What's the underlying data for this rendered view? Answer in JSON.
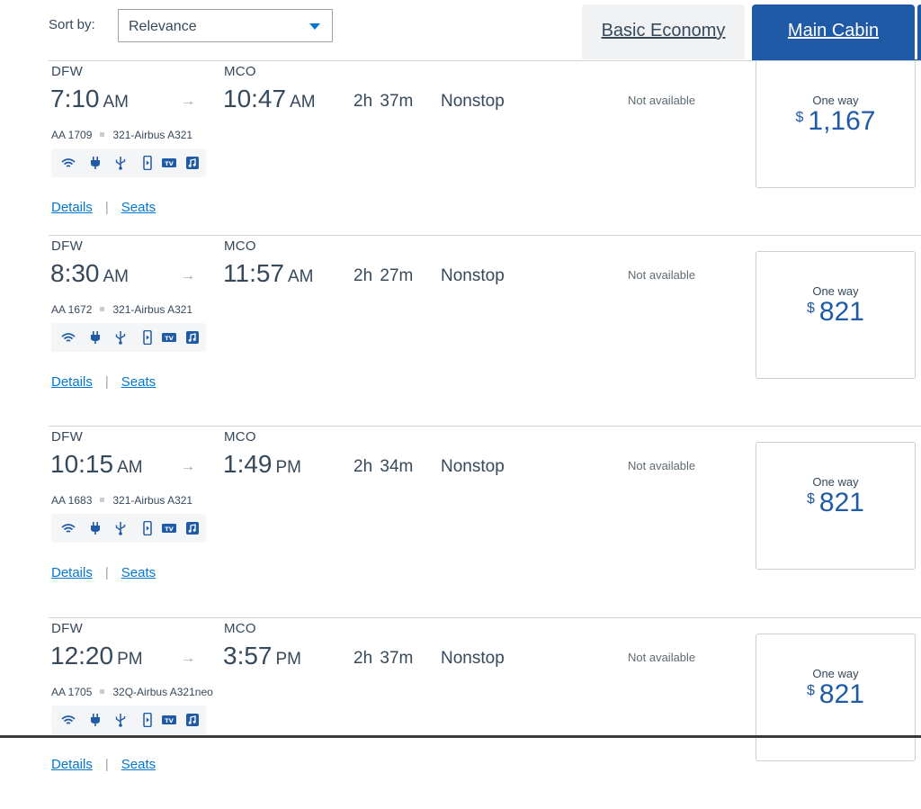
{
  "sort": {
    "label": "Sort by:",
    "value": "Relevance"
  },
  "tabs": {
    "basic": "Basic Economy",
    "main": "Main Cabin"
  },
  "colors": {
    "accent": "#1f5aa6",
    "link": "#0078d2"
  },
  "flights": [
    {
      "origin": "DFW",
      "depart": "7:10",
      "depart_ampm": "AM",
      "dest": "MCO",
      "arrive": "10:47",
      "arrive_ampm": "AM",
      "duration": "2h 37m",
      "stops": "Nonstop",
      "flight_no": "AA 1709",
      "aircraft": "321-Airbus A321",
      "basic": "Not available",
      "fare_label": "One way",
      "currency": "$",
      "price": "1,167",
      "details": "Details",
      "seats": "Seats"
    },
    {
      "origin": "DFW",
      "depart": "8:30",
      "depart_ampm": "AM",
      "dest": "MCO",
      "arrive": "11:57",
      "arrive_ampm": "AM",
      "duration": "2h 27m",
      "stops": "Nonstop",
      "flight_no": "AA 1672",
      "aircraft": "321-Airbus A321",
      "basic": "Not available",
      "fare_label": "One way",
      "currency": "$",
      "price": "821",
      "details": "Details",
      "seats": "Seats"
    },
    {
      "origin": "DFW",
      "depart": "10:15",
      "depart_ampm": "AM",
      "dest": "MCO",
      "arrive": "1:49",
      "arrive_ampm": "PM",
      "duration": "2h 34m",
      "stops": "Nonstop",
      "flight_no": "AA 1683",
      "aircraft": "321-Airbus A321",
      "basic": "Not available",
      "fare_label": "One way",
      "currency": "$",
      "price": "821",
      "details": "Details",
      "seats": "Seats"
    },
    {
      "origin": "DFW",
      "depart": "12:20",
      "depart_ampm": "PM",
      "dest": "MCO",
      "arrive": "3:57",
      "arrive_ampm": "PM",
      "duration": "2h 37m",
      "stops": "Nonstop",
      "flight_no": "AA 1705",
      "aircraft": "32Q-Airbus A321neo",
      "basic": "Not available",
      "fare_label": "One way",
      "currency": "$",
      "price": "821",
      "details": "Details",
      "seats": "Seats"
    }
  ],
  "amenity_icons": [
    "wifi-icon",
    "power-outlet-icon",
    "usb-icon",
    "device-entertainment-icon",
    "tv-icon",
    "music-icon"
  ]
}
